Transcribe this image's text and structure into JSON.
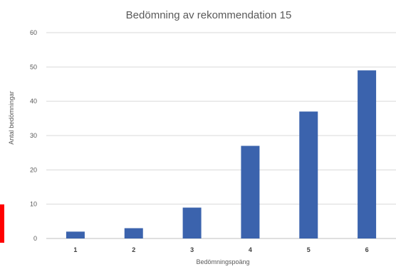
{
  "chart_data": {
    "type": "bar",
    "title": "Bedömning av rekommendation 15",
    "xlabel": "Bedömningspoäng",
    "ylabel": "Antal bedömningar",
    "categories": [
      "1",
      "2",
      "3",
      "4",
      "5",
      "6"
    ],
    "values": [
      2,
      3,
      9,
      27,
      37,
      49
    ],
    "ylim": [
      0,
      60
    ],
    "yticks": [
      "0",
      "10",
      "20",
      "30",
      "40",
      "50",
      "60"
    ],
    "grid": true,
    "legend": "none",
    "bar_color": "#3b63ad"
  },
  "left_marker_color": "#ff0000"
}
